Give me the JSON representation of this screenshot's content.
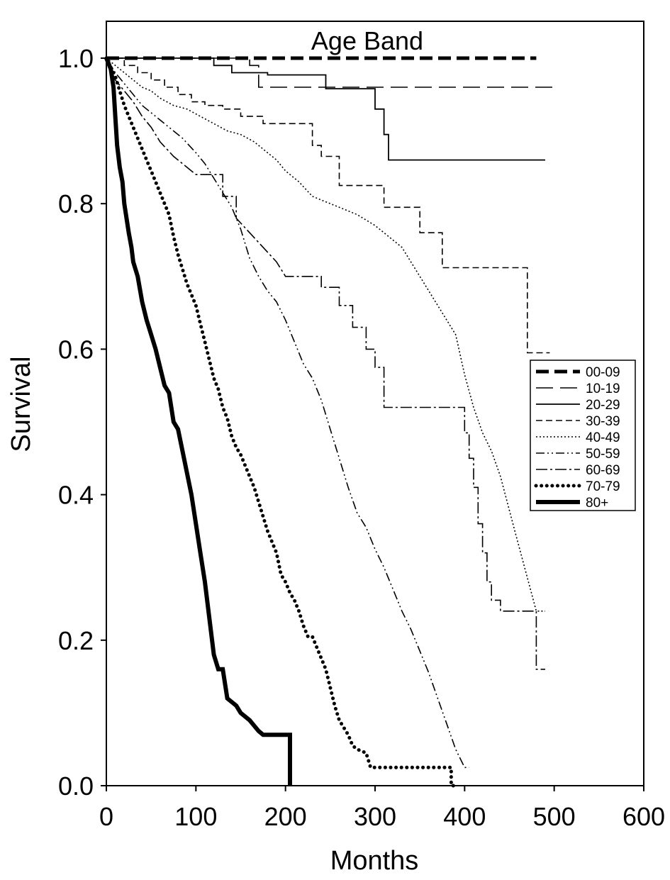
{
  "chart_data": {
    "type": "line",
    "title": "Age Band",
    "xlabel": "Months",
    "ylabel": "Survival",
    "xlim": [
      0,
      600
    ],
    "ylim": [
      0,
      1.0
    ],
    "x_ticks": [
      "0",
      "100",
      "200",
      "300",
      "400",
      "500",
      "600"
    ],
    "y_ticks": [
      "0.0",
      "0.2",
      "0.4",
      "0.6",
      "0.8",
      "1.0"
    ],
    "grid": false,
    "legend_position": "right",
    "series": [
      {
        "name": "00-09",
        "style": "heavy-dash",
        "points": [
          [
            0,
            1.0
          ],
          [
            480,
            1.0
          ]
        ]
      },
      {
        "name": "10-19",
        "style": "long-dash",
        "points": [
          [
            0,
            1.0
          ],
          [
            160,
            1.0
          ],
          [
            160,
            0.99
          ],
          [
            170,
            0.99
          ],
          [
            170,
            0.96
          ],
          [
            500,
            0.96
          ]
        ]
      },
      {
        "name": "20-29",
        "style": "solid",
        "points": [
          [
            0,
            1.0
          ],
          [
            120,
            1.0
          ],
          [
            120,
            0.99
          ],
          [
            140,
            0.99
          ],
          [
            140,
            0.98
          ],
          [
            180,
            0.98
          ],
          [
            180,
            0.977
          ],
          [
            245,
            0.977
          ],
          [
            245,
            0.958
          ],
          [
            300,
            0.958
          ],
          [
            300,
            0.93
          ],
          [
            310,
            0.93
          ],
          [
            310,
            0.895
          ],
          [
            315,
            0.895
          ],
          [
            315,
            0.86
          ],
          [
            490,
            0.86
          ]
        ]
      },
      {
        "name": "30-39",
        "style": "short-dash",
        "points": [
          [
            0,
            1.0
          ],
          [
            20,
            1.0
          ],
          [
            20,
            0.99
          ],
          [
            35,
            0.99
          ],
          [
            35,
            0.98
          ],
          [
            50,
            0.98
          ],
          [
            50,
            0.97
          ],
          [
            65,
            0.97
          ],
          [
            65,
            0.96
          ],
          [
            80,
            0.96
          ],
          [
            80,
            0.95
          ],
          [
            95,
            0.95
          ],
          [
            95,
            0.94
          ],
          [
            110,
            0.94
          ],
          [
            110,
            0.935
          ],
          [
            130,
            0.935
          ],
          [
            130,
            0.93
          ],
          [
            150,
            0.93
          ],
          [
            150,
            0.92
          ],
          [
            175,
            0.92
          ],
          [
            175,
            0.91
          ],
          [
            230,
            0.91
          ],
          [
            230,
            0.88
          ],
          [
            240,
            0.88
          ],
          [
            240,
            0.865
          ],
          [
            260,
            0.865
          ],
          [
            260,
            0.825
          ],
          [
            310,
            0.825
          ],
          [
            310,
            0.795
          ],
          [
            350,
            0.795
          ],
          [
            350,
            0.76
          ],
          [
            375,
            0.76
          ],
          [
            375,
            0.712
          ],
          [
            470,
            0.712
          ],
          [
            470,
            0.595
          ],
          [
            495,
            0.595
          ]
        ]
      },
      {
        "name": "40-49",
        "style": "dotted",
        "points": [
          [
            0,
            1.0
          ],
          [
            10,
            0.99
          ],
          [
            20,
            0.98
          ],
          [
            30,
            0.97
          ],
          [
            40,
            0.96
          ],
          [
            50,
            0.955
          ],
          [
            60,
            0.945
          ],
          [
            75,
            0.935
          ],
          [
            90,
            0.93
          ],
          [
            105,
            0.92
          ],
          [
            120,
            0.91
          ],
          [
            135,
            0.9
          ],
          [
            150,
            0.895
          ],
          [
            165,
            0.885
          ],
          [
            180,
            0.87
          ],
          [
            190,
            0.86
          ],
          [
            200,
            0.845
          ],
          [
            215,
            0.83
          ],
          [
            230,
            0.81
          ],
          [
            250,
            0.8
          ],
          [
            280,
            0.785
          ],
          [
            300,
            0.77
          ],
          [
            330,
            0.74
          ],
          [
            350,
            0.7
          ],
          [
            370,
            0.66
          ],
          [
            390,
            0.62
          ],
          [
            400,
            0.565
          ],
          [
            410,
            0.52
          ],
          [
            420,
            0.485
          ],
          [
            430,
            0.46
          ],
          [
            440,
            0.425
          ],
          [
            455,
            0.355
          ],
          [
            480,
            0.24
          ],
          [
            490,
            0.24
          ]
        ]
      },
      {
        "name": "50-59",
        "style": "dash-dot-dot",
        "points": [
          [
            0,
            1.0
          ],
          [
            10,
            0.98
          ],
          [
            20,
            0.965
          ],
          [
            30,
            0.95
          ],
          [
            40,
            0.935
          ],
          [
            55,
            0.92
          ],
          [
            70,
            0.905
          ],
          [
            85,
            0.89
          ],
          [
            100,
            0.87
          ],
          [
            110,
            0.855
          ],
          [
            120,
            0.835
          ],
          [
            130,
            0.815
          ],
          [
            140,
            0.795
          ],
          [
            150,
            0.765
          ],
          [
            160,
            0.725
          ],
          [
            170,
            0.7
          ],
          [
            180,
            0.68
          ],
          [
            190,
            0.665
          ],
          [
            200,
            0.64
          ],
          [
            210,
            0.61
          ],
          [
            220,
            0.58
          ],
          [
            230,
            0.56
          ],
          [
            240,
            0.53
          ],
          [
            250,
            0.49
          ],
          [
            260,
            0.45
          ],
          [
            270,
            0.41
          ],
          [
            280,
            0.375
          ],
          [
            290,
            0.355
          ],
          [
            300,
            0.325
          ],
          [
            310,
            0.3
          ],
          [
            320,
            0.27
          ],
          [
            330,
            0.24
          ],
          [
            340,
            0.215
          ],
          [
            350,
            0.185
          ],
          [
            360,
            0.155
          ],
          [
            370,
            0.12
          ],
          [
            380,
            0.085
          ],
          [
            390,
            0.05
          ],
          [
            400,
            0.025
          ],
          [
            405,
            0.025
          ]
        ]
      },
      {
        "name": "60-69",
        "style": "dash-dot",
        "points": [
          [
            0,
            1.0
          ],
          [
            10,
            0.97
          ],
          [
            20,
            0.955
          ],
          [
            30,
            0.94
          ],
          [
            40,
            0.92
          ],
          [
            50,
            0.905
          ],
          [
            60,
            0.885
          ],
          [
            75,
            0.865
          ],
          [
            85,
            0.855
          ],
          [
            100,
            0.84
          ],
          [
            130,
            0.84
          ],
          [
            130,
            0.81
          ],
          [
            145,
            0.81
          ],
          [
            145,
            0.78
          ],
          [
            160,
            0.76
          ],
          [
            175,
            0.74
          ],
          [
            190,
            0.72
          ],
          [
            200,
            0.7
          ],
          [
            240,
            0.7
          ],
          [
            240,
            0.685
          ],
          [
            260,
            0.685
          ],
          [
            260,
            0.66
          ],
          [
            275,
            0.66
          ],
          [
            275,
            0.63
          ],
          [
            290,
            0.63
          ],
          [
            290,
            0.6
          ],
          [
            300,
            0.6
          ],
          [
            300,
            0.575
          ],
          [
            310,
            0.575
          ],
          [
            310,
            0.52
          ],
          [
            400,
            0.52
          ],
          [
            400,
            0.485
          ],
          [
            405,
            0.485
          ],
          [
            405,
            0.45
          ],
          [
            410,
            0.45
          ],
          [
            410,
            0.41
          ],
          [
            415,
            0.41
          ],
          [
            415,
            0.36
          ],
          [
            420,
            0.36
          ],
          [
            420,
            0.32
          ],
          [
            425,
            0.32
          ],
          [
            425,
            0.28
          ],
          [
            430,
            0.28
          ],
          [
            430,
            0.255
          ],
          [
            440,
            0.255
          ],
          [
            440,
            0.24
          ],
          [
            480,
            0.24
          ],
          [
            480,
            0.16
          ],
          [
            490,
            0.16
          ]
        ]
      },
      {
        "name": "70-79",
        "style": "heavy-dot",
        "points": [
          [
            0,
            1.0
          ],
          [
            10,
            0.975
          ],
          [
            15,
            0.955
          ],
          [
            20,
            0.935
          ],
          [
            25,
            0.92
          ],
          [
            30,
            0.905
          ],
          [
            35,
            0.89
          ],
          [
            40,
            0.875
          ],
          [
            45,
            0.86
          ],
          [
            50,
            0.845
          ],
          [
            55,
            0.83
          ],
          [
            60,
            0.815
          ],
          [
            65,
            0.8
          ],
          [
            70,
            0.785
          ],
          [
            75,
            0.755
          ],
          [
            80,
            0.73
          ],
          [
            85,
            0.71
          ],
          [
            90,
            0.69
          ],
          [
            95,
            0.675
          ],
          [
            100,
            0.66
          ],
          [
            105,
            0.635
          ],
          [
            110,
            0.61
          ],
          [
            115,
            0.585
          ],
          [
            120,
            0.56
          ],
          [
            125,
            0.545
          ],
          [
            130,
            0.52
          ],
          [
            135,
            0.505
          ],
          [
            140,
            0.48
          ],
          [
            145,
            0.465
          ],
          [
            150,
            0.455
          ],
          [
            155,
            0.44
          ],
          [
            160,
            0.425
          ],
          [
            165,
            0.41
          ],
          [
            170,
            0.39
          ],
          [
            175,
            0.37
          ],
          [
            180,
            0.35
          ],
          [
            185,
            0.335
          ],
          [
            190,
            0.32
          ],
          [
            195,
            0.29
          ],
          [
            200,
            0.28
          ],
          [
            205,
            0.265
          ],
          [
            210,
            0.255
          ],
          [
            215,
            0.24
          ],
          [
            220,
            0.22
          ],
          [
            225,
            0.205
          ],
          [
            230,
            0.205
          ],
          [
            235,
            0.19
          ],
          [
            240,
            0.175
          ],
          [
            245,
            0.16
          ],
          [
            250,
            0.135
          ],
          [
            255,
            0.11
          ],
          [
            260,
            0.09
          ],
          [
            265,
            0.08
          ],
          [
            270,
            0.07
          ],
          [
            275,
            0.055
          ],
          [
            280,
            0.05
          ],
          [
            290,
            0.045
          ],
          [
            295,
            0.025
          ],
          [
            330,
            0.025
          ],
          [
            385,
            0.025
          ],
          [
            385,
            0.0
          ],
          [
            390,
            0.0
          ]
        ]
      },
      {
        "name": "80+",
        "style": "heavy-solid",
        "points": [
          [
            0,
            1.0
          ],
          [
            5,
            0.985
          ],
          [
            8,
            0.96
          ],
          [
            10,
            0.92
          ],
          [
            12,
            0.88
          ],
          [
            15,
            0.85
          ],
          [
            18,
            0.83
          ],
          [
            20,
            0.8
          ],
          [
            25,
            0.76
          ],
          [
            28,
            0.74
          ],
          [
            30,
            0.72
          ],
          [
            35,
            0.7
          ],
          [
            40,
            0.665
          ],
          [
            45,
            0.64
          ],
          [
            50,
            0.62
          ],
          [
            55,
            0.6
          ],
          [
            60,
            0.575
          ],
          [
            65,
            0.55
          ],
          [
            70,
            0.54
          ],
          [
            75,
            0.5
          ],
          [
            80,
            0.49
          ],
          [
            85,
            0.46
          ],
          [
            90,
            0.43
          ],
          [
            95,
            0.4
          ],
          [
            100,
            0.36
          ],
          [
            105,
            0.32
          ],
          [
            110,
            0.28
          ],
          [
            115,
            0.23
          ],
          [
            120,
            0.18
          ],
          [
            125,
            0.16
          ],
          [
            130,
            0.16
          ],
          [
            135,
            0.12
          ],
          [
            145,
            0.11
          ],
          [
            150,
            0.1
          ],
          [
            160,
            0.09
          ],
          [
            170,
            0.075
          ],
          [
            175,
            0.07
          ],
          [
            205,
            0.07
          ],
          [
            205,
            0.0
          ]
        ]
      }
    ]
  }
}
